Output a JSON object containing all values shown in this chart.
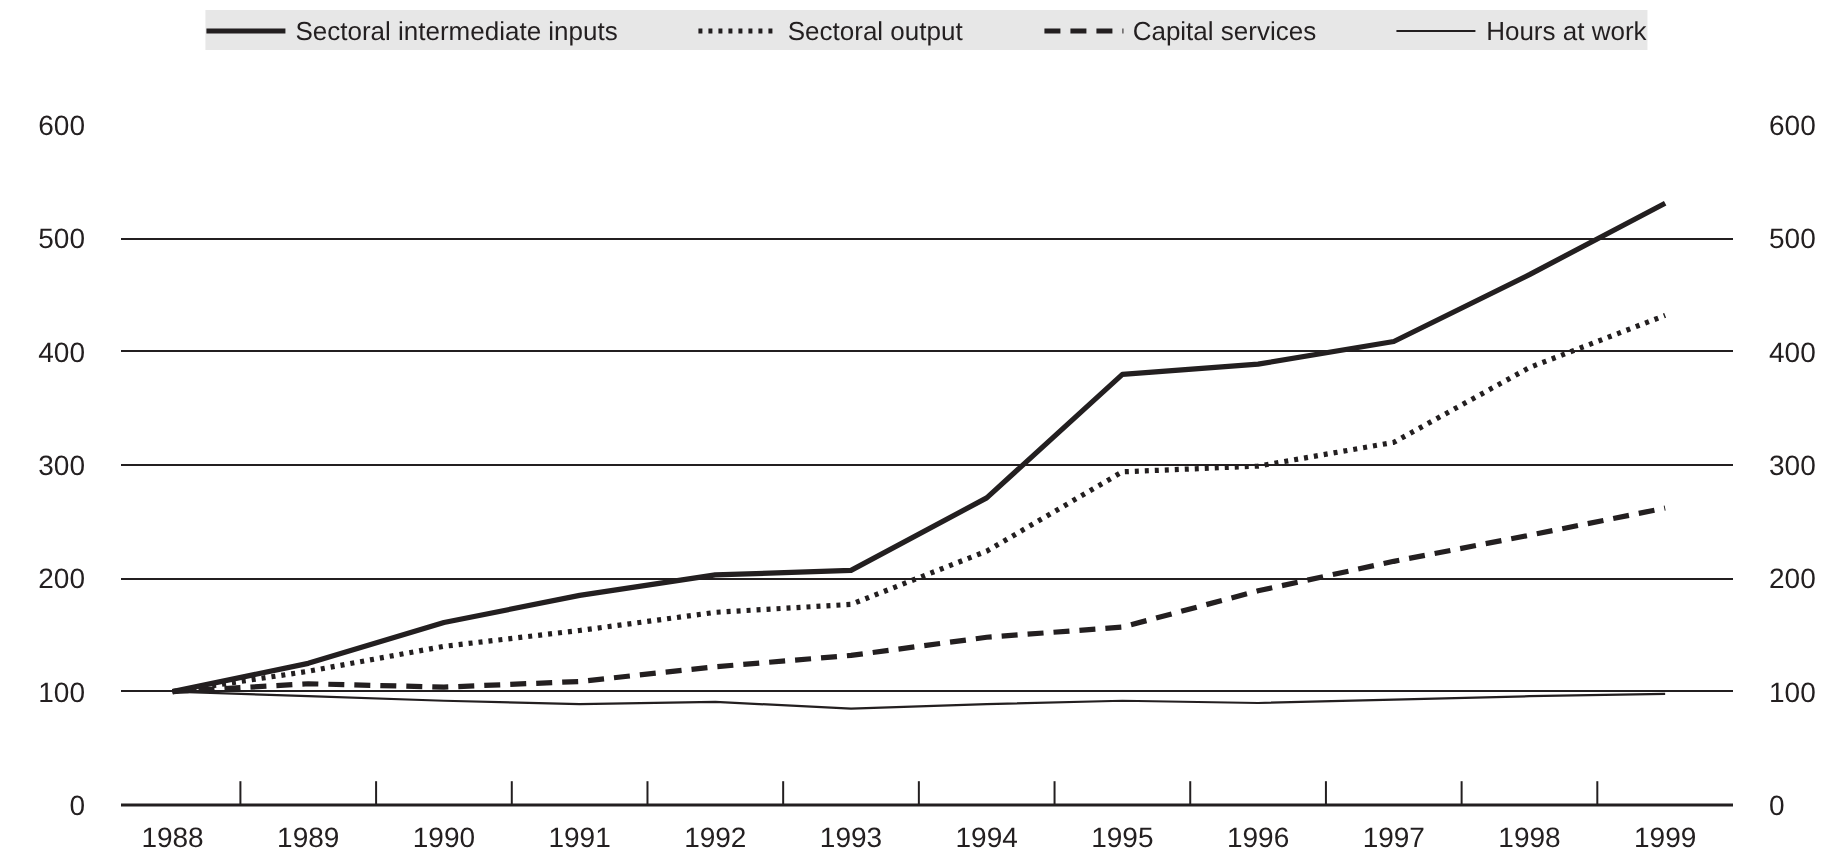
{
  "chart_data": {
    "type": "line",
    "categories": [
      "1988",
      "1989",
      "1990",
      "1991",
      "1992",
      "1993",
      "1994",
      "1995",
      "1996",
      "1997",
      "1998",
      "1999"
    ],
    "series": [
      {
        "name": "Sectoral intermediate inputs",
        "color": "#231f20",
        "line_style": "solid",
        "values": [
          100,
          125,
          161,
          185,
          203,
          207,
          271,
          380,
          389,
          409,
          468,
          531
        ]
      },
      {
        "name": "Sectoral output",
        "color": "#231f20",
        "line_style": "dotted",
        "values": [
          100,
          118,
          140,
          154,
          170,
          177,
          224,
          294,
          299,
          320,
          386,
          432
        ]
      },
      {
        "name": "Capital services",
        "color": "#231f20",
        "line_style": "dashed",
        "values": [
          100,
          107,
          104,
          109,
          122,
          132,
          148,
          157,
          189,
          215,
          238,
          262
        ]
      },
      {
        "name": "Hours at work",
        "color": "#231f20",
        "line_style": "solid",
        "values": [
          100,
          96,
          92,
          89,
          91,
          85,
          89,
          92,
          90,
          93,
          96,
          98
        ]
      }
    ],
    "ylim": [
      0,
      600
    ],
    "yticks": [
      0,
      100,
      200,
      300,
      400,
      500,
      600
    ],
    "y2lim": [
      0,
      600
    ],
    "y2ticks": [
      0,
      100,
      200,
      300,
      400,
      500,
      600
    ],
    "grid": "y",
    "legend": "top"
  }
}
